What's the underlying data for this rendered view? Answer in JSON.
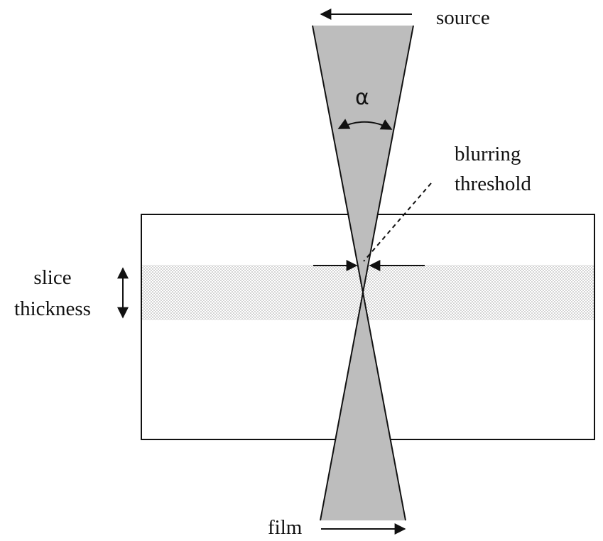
{
  "labels": {
    "source": "source",
    "film": "film",
    "blurring_line1": "blurring",
    "blurring_line2": "threshold",
    "slice_line1": "slice",
    "slice_line2": "thickness",
    "angle_symbol": "α"
  },
  "colors": {
    "beam_fill": "#bdbdbd",
    "slice_dots": "#9a9a9a",
    "stroke": "#111111"
  }
}
